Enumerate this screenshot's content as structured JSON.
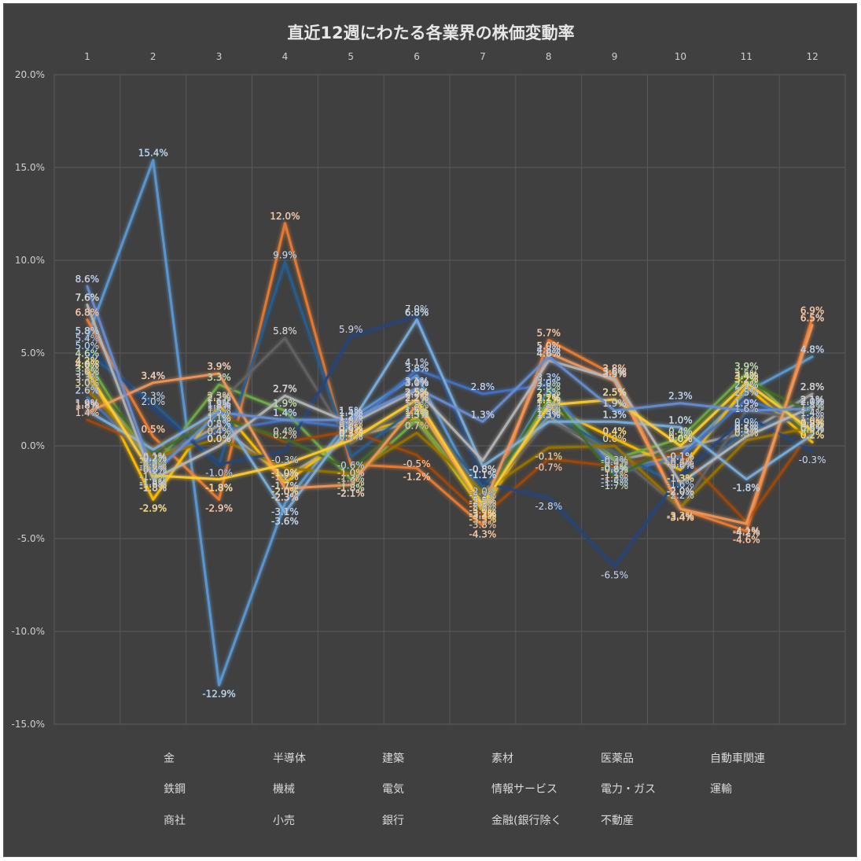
{
  "chart_data": {
    "type": "line",
    "title": "直近12週にわたる各業界の株価変動率",
    "categories": [
      "1",
      "2",
      "3",
      "4",
      "5",
      "6",
      "7",
      "8",
      "9",
      "10",
      "11",
      "12"
    ],
    "y_ticks": [
      "20.0%",
      "15.0%",
      "10.0%",
      "5.0%",
      "0.0%",
      "-5.0%",
      "-10.0%",
      "-15.0%"
    ],
    "ylim": [
      -15,
      20
    ],
    "xaxis_position": "top",
    "grid": true,
    "legend_position": "bottom",
    "series": [
      {
        "name": "金",
        "color": "#5b9bd5",
        "values": [
          5.8,
          15.4,
          -12.9,
          -3.1,
          1.5,
          3.8,
          -3.0,
          3.0,
          -1.3,
          -0.5,
          2.9,
          4.8
        ]
      },
      {
        "name": "半導体",
        "color": "#ed7d31",
        "values": [
          6.8,
          0.5,
          -2.9,
          12.0,
          -1.0,
          -1.2,
          -4.3,
          5.7,
          3.8,
          -3.4,
          -4.6,
          6.9
        ]
      },
      {
        "name": "建築",
        "color": "#a5a5a5",
        "values": [
          3.6,
          -0.8,
          1.1,
          -1.7,
          0.5,
          1.3,
          -2.6,
          1.6,
          -0.8,
          -0.1,
          0.7,
          2.8
        ]
      },
      {
        "name": "素材",
        "color": "#ffc000",
        "values": [
          4.2,
          -2.9,
          2.2,
          -2.0,
          0.6,
          1.5,
          -3.5,
          2.1,
          0.4,
          -1.3,
          3.2,
          0.2
        ]
      },
      {
        "name": "医薬品",
        "color": "#4472c4",
        "values": [
          2.6,
          -0.7,
          0.8,
          1.4,
          1.0,
          4.1,
          2.8,
          3.3,
          -1.5,
          -0.6,
          2.5,
          1.2
        ]
      },
      {
        "name": "自動車関連",
        "color": "#70ad47",
        "values": [
          4.6,
          -1.2,
          3.3,
          1.9,
          -1.8,
          1.4,
          -3.2,
          2.5,
          -0.7,
          0.4,
          3.9,
          0.5
        ]
      },
      {
        "name": "鉄鋼",
        "color": "#255e91",
        "values": [
          5.0,
          2.3,
          -1.0,
          9.9,
          -0.6,
          2.1,
          -2.2,
          1.8,
          -0.3,
          -2.2,
          0.9,
          1.7
        ]
      },
      {
        "name": "機械",
        "color": "#9e480e",
        "values": [
          1.4,
          -0.1,
          1.7,
          0.2,
          0.8,
          -0.5,
          -3.8,
          -0.7,
          -1.1,
          -0.4,
          -4.1,
          0.9
        ]
      },
      {
        "name": "電気",
        "color": "#636363",
        "values": [
          3.3,
          -1.5,
          2.3,
          5.8,
          0.1,
          2.4,
          -2.8,
          1.4,
          -0.4,
          -3.4,
          1.9,
          1.4
        ]
      },
      {
        "name": "情報サービス",
        "color": "#997300",
        "values": [
          3.0,
          -0.6,
          0.4,
          -1.2,
          -1.5,
          0.7,
          -2.5,
          -0.1,
          0.0,
          -3.3,
          0.3,
          1.0
        ]
      },
      {
        "name": "電力・ガス",
        "color": "#264478",
        "values": [
          5.4,
          2.0,
          -1.0,
          -0.3,
          5.9,
          7.0,
          -2.0,
          -2.8,
          -6.5,
          -1.6,
          1.6,
          -0.3
        ]
      },
      {
        "name": "運輸",
        "color": "#43682b",
        "values": [
          3.8,
          -0.4,
          1.5,
          0.4,
          -1.3,
          1.8,
          -3.0,
          2.8,
          -1.7,
          0.2,
          3.5,
          1.8
        ]
      },
      {
        "name": "商社",
        "color": "#7cafdd",
        "values": [
          1.9,
          -0.2,
          1.9,
          -3.6,
          1.2,
          6.8,
          -1.1,
          1.3,
          1.3,
          1.0,
          -1.8,
          0.6
        ]
      },
      {
        "name": "小売",
        "color": "#f1975a",
        "values": [
          1.8,
          3.4,
          3.9,
          -2.3,
          -2.1,
          2.2,
          -3.3,
          5.0,
          3.5,
          -3.4,
          -4.2,
          6.5
        ]
      },
      {
        "name": "銀行",
        "color": "#b7b7b7",
        "values": [
          7.6,
          -1.8,
          0.0,
          2.7,
          1.2,
          3.0,
          -0.8,
          4.6,
          3.6,
          -2.0,
          0.5,
          2.1
        ]
      },
      {
        "name": "金融(銀行除く",
        "color": "#ffcd33",
        "values": [
          4.0,
          -1.6,
          -1.8,
          -1.0,
          0.3,
          2.5,
          -3.2,
          2.2,
          2.5,
          0.0,
          3.4,
          0.8
        ]
      },
      {
        "name": "不動産",
        "color": "#698ed0",
        "values": [
          8.6,
          -1.5,
          1.8,
          1.4,
          1.4,
          3.1,
          1.3,
          4.8,
          1.9,
          2.3,
          1.9,
          2.0
        ]
      }
    ]
  }
}
